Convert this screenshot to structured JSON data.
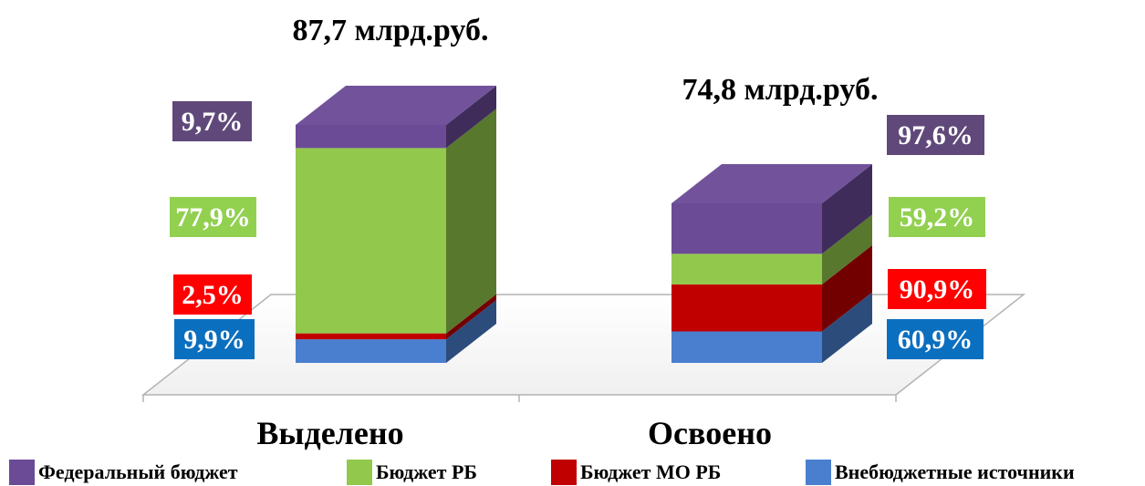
{
  "chart_data": {
    "type": "bar",
    "stacked": true,
    "three_d": true,
    "categories": [
      "Выделено",
      "Освоено"
    ],
    "totals": [
      "87,7 млрд.руб.",
      "74,8 млрд.руб."
    ],
    "series": [
      {
        "name": "Внебюджетные источники",
        "color": "#4a7fcf",
        "label_color": "#0b6fbf",
        "values": [
          9.9,
          60.9
        ],
        "labels": [
          "9,9%",
          "60,9%"
        ]
      },
      {
        "name": "Бюджет МО РБ",
        "color": "#c00000",
        "label_color": "#ff0000",
        "values": [
          2.5,
          90.9
        ],
        "labels": [
          "2,5%",
          "90,9%"
        ]
      },
      {
        "name": "Бюджет РБ",
        "color": "#92c84c",
        "label_color": "#92d050",
        "values": [
          77.9,
          59.2
        ],
        "labels": [
          "77,9%",
          "59,2%"
        ]
      },
      {
        "name": "Федеральный бюджет",
        "color": "#6b4a96",
        "label_color": "#60497a",
        "values": [
          9.7,
          97.6
        ],
        "labels": [
          "9,7%",
          "97,6%"
        ]
      }
    ],
    "legend": {
      "position": "bottom",
      "order": [
        "Федеральный бюджет",
        "Бюджет РБ",
        "Бюджет МО РБ",
        "Внебюджетные источники"
      ]
    }
  }
}
